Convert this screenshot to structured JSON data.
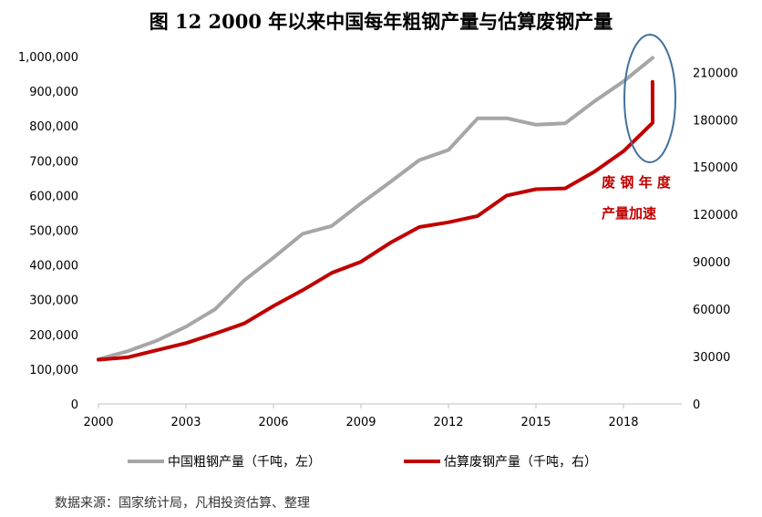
{
  "chart_data": {
    "type": "line",
    "title": "图 12   2000 年以来中国每年粗钢产量与估算废钢产量",
    "x": [
      2000,
      2001,
      2002,
      2003,
      2004,
      2005,
      2006,
      2007,
      2008,
      2009,
      2010,
      2011,
      2012,
      2013,
      2014,
      2015,
      2016,
      2017,
      2018,
      2019
    ],
    "x_ticks": [
      2000,
      2003,
      2006,
      2009,
      2012,
      2015,
      2018
    ],
    "xlim": [
      2000,
      2020
    ],
    "ylim_left": [
      0,
      1000000
    ],
    "ylim_right": [
      0,
      220000
    ],
    "y_left_ticks": [
      "0",
      "100,000",
      "200,000",
      "300,000",
      "400,000",
      "500,000",
      "600,000",
      "700,000",
      "800,000",
      "900,000",
      "1,000,000"
    ],
    "y_right_ticks": [
      "0",
      "30000",
      "60000",
      "90000",
      "120000",
      "150000",
      "180000",
      "210000"
    ],
    "y_left_tick_values": [
      0,
      100000,
      200000,
      300000,
      400000,
      500000,
      600000,
      700000,
      800000,
      900000,
      1000000
    ],
    "y_right_tick_values": [
      0,
      30000,
      60000,
      90000,
      120000,
      150000,
      180000,
      210000
    ],
    "series": [
      {
        "name": "中国粗钢产量（千吨，左）",
        "axis": "left",
        "color": "#a6a6a6",
        "values": [
          128500,
          151600,
          182200,
          222300,
          272800,
          355800,
          421000,
          489700,
          512300,
          577100,
          638700,
          701900,
          731000,
          822000,
          822300,
          803800,
          807600,
          870900,
          928300,
          996300
        ]
      },
      {
        "name": "估算废钢产量（千吨，右）",
        "axis": "right",
        "color": "#c00000",
        "values": [
          28000,
          29500,
          34000,
          38500,
          44500,
          51000,
          62000,
          72000,
          83000,
          90000,
          102000,
          112000,
          115000,
          119000,
          132000,
          136000,
          136500,
          147000,
          160000,
          178000
        ]
      }
    ],
    "last_point_right": 204000,
    "annotation": {
      "line1": "废 钢 年 度",
      "line2": "产量加速",
      "color": "#c00000",
      "ellipse_color": "#41719c"
    },
    "grid": false,
    "legend_position": "bottom"
  },
  "source": "数据来源：国家统计局，凡相投资估算、整理"
}
